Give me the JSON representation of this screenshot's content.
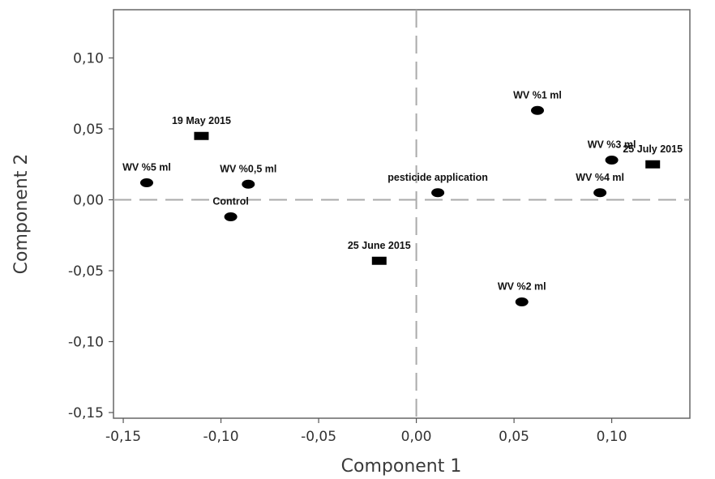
{
  "chart_data": {
    "type": "scatter",
    "title": "",
    "xlabel": "Component 1",
    "ylabel": "Component 2",
    "xlim": [
      -0.155,
      0.14
    ],
    "ylim": [
      -0.154,
      0.134
    ],
    "x_ticks": [
      {
        "value": -0.15,
        "label": "-0,15"
      },
      {
        "value": -0.1,
        "label": "-0,10"
      },
      {
        "value": -0.05,
        "label": "-0,05"
      },
      {
        "value": 0.0,
        "label": "0,00"
      },
      {
        "value": 0.05,
        "label": "0,05"
      },
      {
        "value": 0.1,
        "label": "0,10"
      }
    ],
    "y_ticks": [
      {
        "value": 0.1,
        "label": "0,10"
      },
      {
        "value": 0.05,
        "label": "0,05"
      },
      {
        "value": 0.0,
        "label": "0,00"
      },
      {
        "value": -0.05,
        "label": "-0,05"
      },
      {
        "value": -0.1,
        "label": "-0,10"
      },
      {
        "value": -0.15,
        "label": "-0,15"
      }
    ],
    "reference_lines": {
      "x": 0,
      "y": 0,
      "style": "dashed"
    },
    "grid": false,
    "colors": {
      "marker": "#000000",
      "axis": "#555555",
      "reference_line": "#aaaaaa"
    },
    "points": [
      {
        "label": "19 May 2015",
        "x": -0.11,
        "y": 0.045,
        "marker": "square"
      },
      {
        "label": "WV %5 ml",
        "x": -0.138,
        "y": 0.012,
        "marker": "circle"
      },
      {
        "label": "WV %0,5 ml",
        "x": -0.086,
        "y": 0.011,
        "marker": "circle"
      },
      {
        "label": "Control",
        "x": -0.095,
        "y": -0.012,
        "marker": "circle"
      },
      {
        "label": "25 June 2015",
        "x": -0.019,
        "y": -0.043,
        "marker": "square"
      },
      {
        "label": "pesticide application",
        "x": 0.011,
        "y": 0.005,
        "marker": "circle"
      },
      {
        "label": "WV %1 ml",
        "x": 0.062,
        "y": 0.063,
        "marker": "circle"
      },
      {
        "label": "WV %2 ml",
        "x": 0.054,
        "y": -0.072,
        "marker": "circle"
      },
      {
        "label": "WV %3 ml",
        "x": 0.1,
        "y": 0.028,
        "marker": "circle"
      },
      {
        "label": "WV %4 ml",
        "x": 0.094,
        "y": 0.005,
        "marker": "circle"
      },
      {
        "label": "25 July 2015",
        "x": 0.121,
        "y": 0.025,
        "marker": "square"
      }
    ]
  }
}
